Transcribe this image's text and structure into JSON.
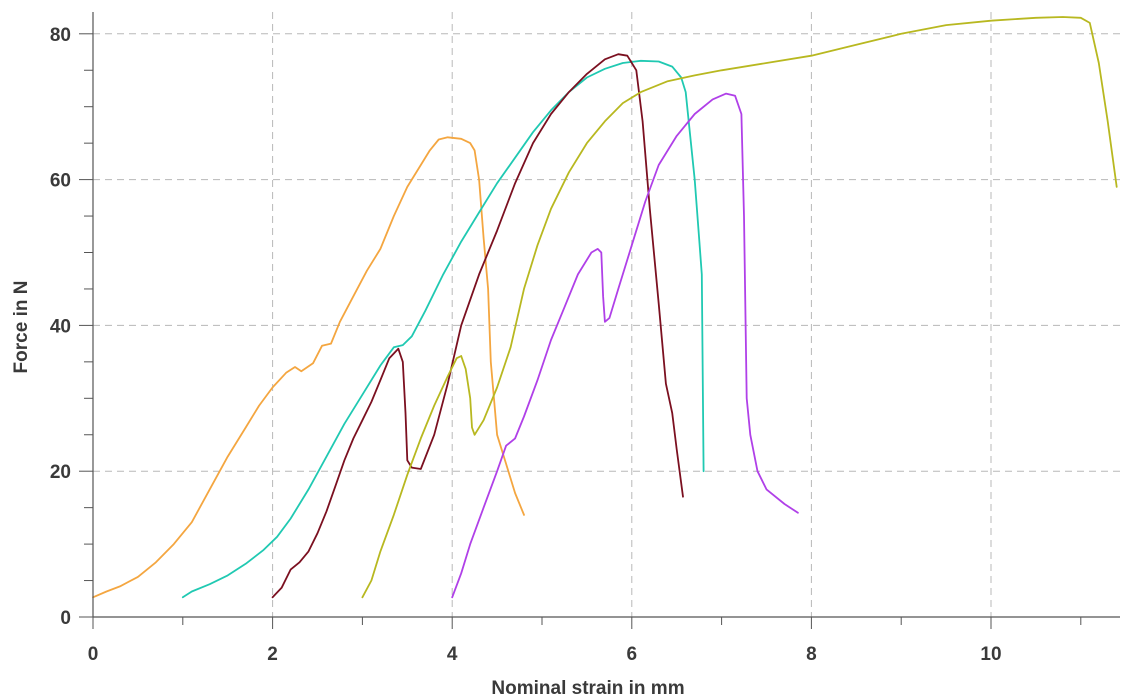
{
  "chart_data": {
    "type": "line",
    "title": "",
    "xlabel": "Nominal strain in mm",
    "ylabel": "Force in N",
    "xlim": [
      0,
      11.4
    ],
    "ylim": [
      0,
      85
    ],
    "x_ticks": [
      0,
      2,
      4,
      6,
      8,
      10
    ],
    "x_tick_labels": [
      "0",
      "2",
      "4",
      "6",
      "8",
      "10"
    ],
    "x_minor_ticks": [
      1,
      3,
      5,
      7,
      9,
      11
    ],
    "y_ticks": [
      0,
      20,
      40,
      60,
      80
    ],
    "y_tick_labels": [
      "0",
      "20",
      "40",
      "60",
      "80"
    ],
    "y_minor_step": 5,
    "grid": true,
    "legend": "none",
    "series": [
      {
        "color": "#f4a640",
        "points": [
          [
            0,
            2.7
          ],
          [
            0.15,
            3.5
          ],
          [
            0.3,
            4.2
          ],
          [
            0.5,
            5.5
          ],
          [
            0.7,
            7.5
          ],
          [
            0.9,
            10
          ],
          [
            1.1,
            13
          ],
          [
            1.3,
            17.5
          ],
          [
            1.5,
            22
          ],
          [
            1.7,
            26
          ],
          [
            1.85,
            29
          ],
          [
            2.0,
            31.5
          ],
          [
            2.15,
            33.5
          ],
          [
            2.25,
            34.3
          ],
          [
            2.32,
            33.7
          ],
          [
            2.45,
            34.8
          ],
          [
            2.55,
            37.2
          ],
          [
            2.65,
            37.5
          ],
          [
            2.75,
            40.5
          ],
          [
            2.9,
            44
          ],
          [
            3.05,
            47.5
          ],
          [
            3.2,
            50.5
          ],
          [
            3.35,
            55
          ],
          [
            3.5,
            59
          ],
          [
            3.65,
            62
          ],
          [
            3.75,
            64
          ],
          [
            3.85,
            65.5
          ],
          [
            3.95,
            65.8
          ],
          [
            4.1,
            65.6
          ],
          [
            4.2,
            65
          ],
          [
            4.25,
            64
          ],
          [
            4.3,
            60
          ],
          [
            4.35,
            52
          ],
          [
            4.4,
            45
          ],
          [
            4.43,
            35
          ],
          [
            4.5,
            25
          ],
          [
            4.6,
            21
          ],
          [
            4.7,
            17
          ],
          [
            4.8,
            14
          ]
        ]
      },
      {
        "color": "#20c9b2",
        "points": [
          [
            1.0,
            2.7
          ],
          [
            1.1,
            3.5
          ],
          [
            1.3,
            4.5
          ],
          [
            1.5,
            5.7
          ],
          [
            1.7,
            7.3
          ],
          [
            1.9,
            9.2
          ],
          [
            2.05,
            11
          ],
          [
            2.2,
            13.5
          ],
          [
            2.4,
            17.5
          ],
          [
            2.6,
            22
          ],
          [
            2.8,
            26.5
          ],
          [
            3.0,
            30.5
          ],
          [
            3.2,
            34.5
          ],
          [
            3.35,
            37
          ],
          [
            3.45,
            37.3
          ],
          [
            3.55,
            38.5
          ],
          [
            3.7,
            42
          ],
          [
            3.9,
            47
          ],
          [
            4.1,
            51.5
          ],
          [
            4.3,
            55.5
          ],
          [
            4.5,
            59.5
          ],
          [
            4.7,
            63
          ],
          [
            4.9,
            66.5
          ],
          [
            5.1,
            69.5
          ],
          [
            5.3,
            72
          ],
          [
            5.5,
            74
          ],
          [
            5.7,
            75.2
          ],
          [
            5.9,
            76
          ],
          [
            6.1,
            76.3
          ],
          [
            6.3,
            76.2
          ],
          [
            6.45,
            75.5
          ],
          [
            6.55,
            74
          ],
          [
            6.6,
            72
          ],
          [
            6.65,
            66
          ],
          [
            6.7,
            60
          ],
          [
            6.75,
            52
          ],
          [
            6.78,
            47
          ],
          [
            6.8,
            20
          ]
        ]
      },
      {
        "color": "#7b1020",
        "points": [
          [
            2.0,
            2.7
          ],
          [
            2.1,
            4
          ],
          [
            2.2,
            6.5
          ],
          [
            2.3,
            7.5
          ],
          [
            2.4,
            9
          ],
          [
            2.5,
            11.5
          ],
          [
            2.6,
            14.5
          ],
          [
            2.7,
            18
          ],
          [
            2.8,
            21.5
          ],
          [
            2.9,
            24.5
          ],
          [
            3.0,
            27
          ],
          [
            3.1,
            29.5
          ],
          [
            3.2,
            32.5
          ],
          [
            3.3,
            35.5
          ],
          [
            3.4,
            36.8
          ],
          [
            3.45,
            35
          ],
          [
            3.48,
            28
          ],
          [
            3.5,
            21.5
          ],
          [
            3.55,
            20.5
          ],
          [
            3.65,
            20.3
          ],
          [
            3.8,
            25
          ],
          [
            3.95,
            32
          ],
          [
            4.1,
            40
          ],
          [
            4.3,
            47
          ],
          [
            4.5,
            53
          ],
          [
            4.7,
            59.5
          ],
          [
            4.9,
            65
          ],
          [
            5.1,
            69
          ],
          [
            5.3,
            72
          ],
          [
            5.5,
            74.5
          ],
          [
            5.7,
            76.5
          ],
          [
            5.85,
            77.2
          ],
          [
            5.95,
            77
          ],
          [
            6.05,
            75
          ],
          [
            6.12,
            68
          ],
          [
            6.2,
            56
          ],
          [
            6.3,
            43
          ],
          [
            6.38,
            32
          ],
          [
            6.45,
            28
          ],
          [
            6.5,
            23
          ],
          [
            6.57,
            16.5
          ]
        ]
      },
      {
        "color": "#b8b820",
        "points": [
          [
            3.0,
            2.7
          ],
          [
            3.1,
            5
          ],
          [
            3.2,
            9
          ],
          [
            3.35,
            14
          ],
          [
            3.5,
            19.5
          ],
          [
            3.65,
            24.5
          ],
          [
            3.8,
            29
          ],
          [
            3.95,
            33
          ],
          [
            4.05,
            35.5
          ],
          [
            4.1,
            35.8
          ],
          [
            4.15,
            34
          ],
          [
            4.2,
            30
          ],
          [
            4.22,
            26
          ],
          [
            4.25,
            25
          ],
          [
            4.35,
            27
          ],
          [
            4.5,
            31.5
          ],
          [
            4.65,
            37
          ],
          [
            4.8,
            45
          ],
          [
            4.95,
            51
          ],
          [
            5.1,
            56
          ],
          [
            5.3,
            61
          ],
          [
            5.5,
            65
          ],
          [
            5.7,
            68
          ],
          [
            5.9,
            70.5
          ],
          [
            6.1,
            72
          ],
          [
            6.4,
            73.5
          ],
          [
            6.7,
            74.3
          ],
          [
            7.0,
            75
          ],
          [
            7.5,
            76
          ],
          [
            8.0,
            77
          ],
          [
            8.5,
            78.5
          ],
          [
            9.0,
            80
          ],
          [
            9.5,
            81.2
          ],
          [
            10.0,
            81.8
          ],
          [
            10.5,
            82.2
          ],
          [
            10.8,
            82.3
          ],
          [
            11.0,
            82.2
          ],
          [
            11.1,
            81.5
          ],
          [
            11.2,
            76
          ],
          [
            11.3,
            68
          ],
          [
            11.4,
            59
          ]
        ]
      },
      {
        "color": "#b040e8",
        "points": [
          [
            4.0,
            2.7
          ],
          [
            4.1,
            6
          ],
          [
            4.2,
            10
          ],
          [
            4.35,
            15
          ],
          [
            4.5,
            20
          ],
          [
            4.6,
            23.5
          ],
          [
            4.7,
            24.5
          ],
          [
            4.8,
            27.5
          ],
          [
            4.95,
            32.5
          ],
          [
            5.1,
            38
          ],
          [
            5.25,
            42.5
          ],
          [
            5.4,
            47
          ],
          [
            5.55,
            50
          ],
          [
            5.62,
            50.5
          ],
          [
            5.66,
            50
          ],
          [
            5.68,
            44
          ],
          [
            5.7,
            40.5
          ],
          [
            5.75,
            41
          ],
          [
            5.85,
            45
          ],
          [
            6.0,
            51
          ],
          [
            6.15,
            57
          ],
          [
            6.3,
            62
          ],
          [
            6.5,
            66
          ],
          [
            6.7,
            69
          ],
          [
            6.9,
            71
          ],
          [
            7.05,
            71.8
          ],
          [
            7.15,
            71.5
          ],
          [
            7.22,
            69
          ],
          [
            7.25,
            55
          ],
          [
            7.28,
            30
          ],
          [
            7.32,
            25
          ],
          [
            7.4,
            20
          ],
          [
            7.5,
            17.5
          ],
          [
            7.7,
            15.5
          ],
          [
            7.85,
            14.3
          ]
        ]
      }
    ]
  }
}
